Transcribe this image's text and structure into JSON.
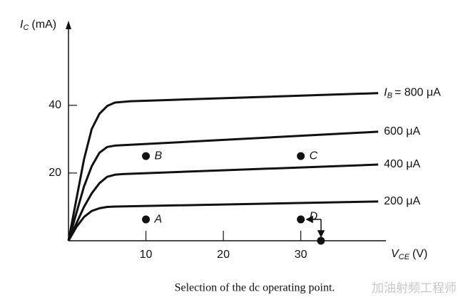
{
  "chart_data": {
    "type": "line",
    "ylabel": {
      "symbol": "I",
      "subscript": "C",
      "unit": "(mA)"
    },
    "xlabel": {
      "symbol": "V",
      "subscript": "CE",
      "unit": "(V)"
    },
    "series_symbol": {
      "symbol": "I",
      "subscript": "B"
    },
    "xlim": [
      0,
      41
    ],
    "ylim": [
      0,
      65
    ],
    "xticks": [
      10,
      20,
      30
    ],
    "yticks": [
      20,
      40
    ],
    "color": "#111111",
    "series": [
      {
        "name": "= 800 μA",
        "x": [
          0,
          1,
          2,
          3,
          4,
          5,
          6,
          8,
          12,
          40
        ],
        "values": [
          0,
          12,
          24,
          33,
          37.5,
          39.8,
          40.8,
          41.2,
          41.5,
          43.6
        ]
      },
      {
        "name": "600 μA",
        "x": [
          0,
          1,
          2,
          3,
          4,
          5,
          6,
          40
        ],
        "values": [
          0,
          8,
          16,
          22,
          26,
          27.7,
          28.1,
          32.2
        ]
      },
      {
        "name": "400 μA",
        "x": [
          0,
          1,
          2,
          3,
          4,
          5,
          6,
          7,
          40
        ],
        "values": [
          0,
          5,
          10,
          14,
          17,
          18.9,
          19.5,
          19.7,
          22.5
        ]
      },
      {
        "name": "200 μA",
        "x": [
          0,
          1,
          2,
          3,
          4,
          5,
          6,
          40
        ],
        "values": [
          0,
          4,
          7,
          8.8,
          9.6,
          10,
          10.1,
          11.6
        ]
      }
    ],
    "points": [
      {
        "label": "A",
        "x": 10,
        "y": 6.3
      },
      {
        "label": "B",
        "x": 10,
        "y": 25
      },
      {
        "label": "C",
        "x": 30,
        "y": 25
      },
      {
        "label": "D",
        "x": 30,
        "y": 6.3
      },
      {
        "x": 32.6,
        "y": 0
      }
    ],
    "caption": "Selection of the dc operating point.",
    "watermark": "加油射频工程师"
  }
}
